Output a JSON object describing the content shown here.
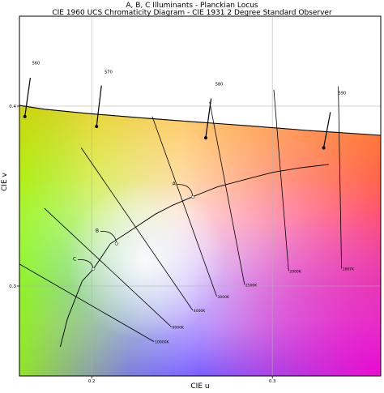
{
  "chart_data": {
    "type": "line",
    "title": "A, B, C Illuminants - Planckian Locus",
    "subtitle": "CIE 1960 UCS Chromaticity Diagram - CIE 1931 2 Degree Standard Observer",
    "xlabel": "CIE u",
    "ylabel": "CIE v",
    "xlim": [
      0.16,
      0.36
    ],
    "ylim": [
      0.25,
      0.45
    ],
    "grid": true,
    "x_ticks": [
      {
        "value": 0.2,
        "label": "0.2"
      },
      {
        "value": 0.3,
        "label": "0.3"
      }
    ],
    "y_ticks": [
      {
        "value": 0.3,
        "label": "0.3"
      },
      {
        "value": 0.4,
        "label": "0.4"
      }
    ],
    "spectral_locus": {
      "u": [
        0.16,
        0.174,
        0.196,
        0.226,
        0.254,
        0.288,
        0.321,
        0.36
      ],
      "v": [
        0.4004,
        0.3983,
        0.3961,
        0.3936,
        0.3915,
        0.389,
        0.3864,
        0.3838
      ]
    },
    "wavelength_labels": [
      {
        "label": "560",
        "u": 0.167,
        "v": 0.4232,
        "line_u": [
          0.163,
          0.166
        ],
        "line_v": [
          0.3942,
          0.4157
        ]
      },
      {
        "label": "570",
        "u": 0.2072,
        "v": 0.4183,
        "line_u": [
          0.2027,
          0.2054
        ],
        "line_v": [
          0.3887,
          0.4114
        ]
      },
      {
        "label": "580",
        "u": 0.2684,
        "v": 0.4115,
        "line_u": [
          0.2631,
          0.2661
        ],
        "line_v": [
          0.3824,
          0.4043
        ]
      },
      {
        "label": "590",
        "u": 0.3365,
        "v": 0.4066,
        "line_u": [
          0.3284,
          0.3321
        ],
        "line_v": [
          0.3768,
          0.3966
        ]
      }
    ],
    "planckian_locus": {
      "u": [
        0.1826,
        0.1866,
        0.1947,
        0.2009,
        0.2103,
        0.2241,
        0.2353,
        0.2448,
        0.2557,
        0.2695,
        0.2859,
        0.3002,
        0.3155,
        0.3312
      ],
      "v": [
        0.2662,
        0.2819,
        0.3027,
        0.3094,
        0.3235,
        0.3325,
        0.34,
        0.3449,
        0.3496,
        0.3551,
        0.3595,
        0.3632,
        0.3657,
        0.3676
      ]
    },
    "isotemperature_lines": [
      {
        "label": "10000K",
        "u": [
          0.16,
          0.2345
        ],
        "v": [
          0.3122,
          0.2691
        ]
      },
      {
        "label": "6000K",
        "u": [
          0.1738,
          0.2441
        ],
        "v": [
          0.3432,
          0.2773
        ]
      },
      {
        "label": "4000K",
        "u": [
          0.1942,
          0.2559
        ],
        "v": [
          0.3768,
          0.2865
        ]
      },
      {
        "label": "3000K",
        "u": [
          0.2335,
          0.2692
        ],
        "v": [
          0.3943,
          0.2942
        ]
      },
      {
        "label": "2500K",
        "u": [
          0.2653,
          0.2846
        ],
        "v": [
          0.4023,
          0.3007
        ]
      },
      {
        "label": "2000K",
        "u": [
          0.3008,
          0.309
        ],
        "v": [
          0.4091,
          0.3084
        ]
      },
      {
        "label": "1667K",
        "u": [
          0.3365,
          0.3383
        ],
        "v": [
          0.411,
          0.3097
        ]
      }
    ],
    "illuminants": [
      {
        "label": "A",
        "u": 0.256,
        "v": 0.3495,
        "text_u": 0.2455,
        "text_v": 0.356
      },
      {
        "label": "B",
        "u": 0.2137,
        "v": 0.3236,
        "text_u": 0.203,
        "text_v": 0.33
      },
      {
        "label": "C",
        "u": 0.2009,
        "v": 0.3095,
        "text_u": 0.1905,
        "text_v": 0.3142
      }
    ]
  }
}
